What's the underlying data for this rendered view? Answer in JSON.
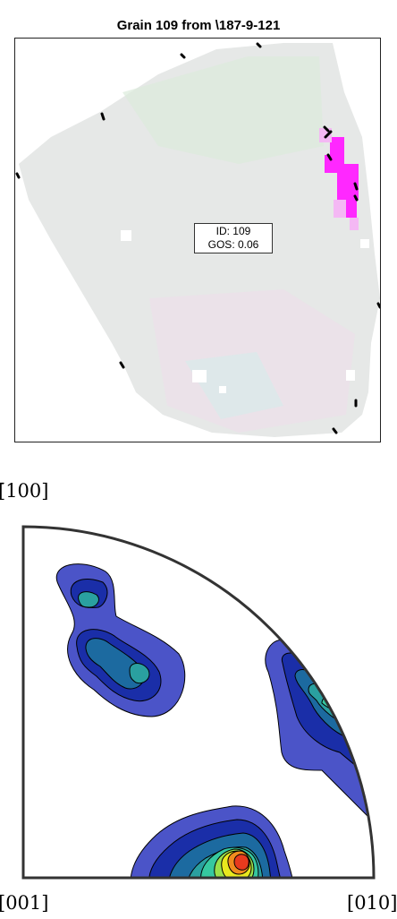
{
  "grain_map": {
    "title": "Grain 109 from \\187-9-121",
    "label_id": "ID: 109",
    "label_gos": "GOS: 0.06",
    "fill_color": "#e4e8e6",
    "highlight_color": "#ff28ff"
  },
  "pole_figure": {
    "label_top": "[̄100]",
    "label_left": "[001]",
    "label_right": "[010]",
    "colors": [
      "#4b54c8",
      "#1a2ea8",
      "#1c6aa0",
      "#2aa0a0",
      "#36c8a0",
      "#9ae04a",
      "#e8e81e",
      "#f08c1e",
      "#e83a1e"
    ]
  }
}
